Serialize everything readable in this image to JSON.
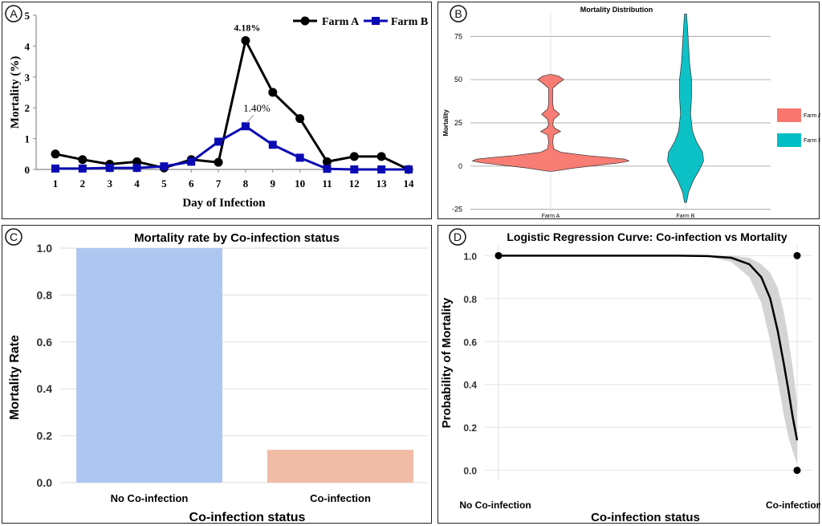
{
  "panels": {
    "A": "A",
    "B": "B",
    "C": "C",
    "D": "D"
  },
  "chart_data": [
    {
      "panel": "A",
      "type": "line",
      "title": "",
      "xlabel": "Day of Infection",
      "ylabel": "Mortality (%)",
      "x": [
        1,
        2,
        3,
        4,
        5,
        6,
        7,
        8,
        9,
        10,
        11,
        12,
        13,
        14
      ],
      "ylim": [
        0,
        5
      ],
      "yticks": [
        0,
        1,
        2,
        3,
        4,
        5
      ],
      "grid": false,
      "legend": "top-right",
      "series": [
        {
          "name": "Farm A",
          "color": "#000000",
          "marker": "circle",
          "values": [
            0.5,
            0.32,
            0.17,
            0.25,
            0.05,
            0.32,
            0.23,
            4.18,
            2.5,
            1.65,
            0.25,
            0.42,
            0.42,
            0.0
          ]
        },
        {
          "name": "Farm B",
          "color": "#0a0ab4",
          "marker": "square",
          "values": [
            0.03,
            0.03,
            0.05,
            0.05,
            0.1,
            0.25,
            0.9,
            1.4,
            0.8,
            0.38,
            0.02,
            0.0,
            0.0,
            0.0
          ]
        }
      ],
      "annotations": [
        {
          "text": "4.18%",
          "x": 8,
          "y": 4.18
        },
        {
          "text": "1.40%",
          "x": 8,
          "y": 1.4
        }
      ]
    },
    {
      "panel": "B",
      "type": "violin",
      "title": "Mortality Distribution",
      "xlabel": "",
      "ylabel": "Mortality",
      "categories": [
        "Farm A",
        "Farm B"
      ],
      "ylim": [
        -27,
        90
      ],
      "yticks": [
        -25,
        0,
        25,
        50,
        75
      ],
      "grid": true,
      "legend": "right",
      "series": [
        {
          "name": "Farm A",
          "color": "#f8766d",
          "profile": [
            [
              -3,
              2
            ],
            [
              -1,
              25
            ],
            [
              1,
              55
            ],
            [
              2,
              70
            ],
            [
              3,
              78
            ],
            [
              4,
              74
            ],
            [
              5,
              58
            ],
            [
              6,
              38
            ],
            [
              8,
              10
            ],
            [
              10,
              3
            ],
            [
              14,
              2
            ],
            [
              18,
              3
            ],
            [
              20,
              10
            ],
            [
              22,
              4
            ],
            [
              24,
              2
            ],
            [
              27,
              3
            ],
            [
              30,
              9
            ],
            [
              33,
              3
            ],
            [
              36,
              2
            ],
            [
              45,
              2
            ],
            [
              48,
              8
            ],
            [
              50,
              13
            ],
            [
              52,
              8
            ],
            [
              53,
              1
            ]
          ]
        },
        {
          "name": "Farm B",
          "color": "#00bfc4",
          "profile": [
            [
              -21,
              1
            ],
            [
              -15,
              3
            ],
            [
              -8,
              8
            ],
            [
              -2,
              14
            ],
            [
              3,
              18
            ],
            [
              8,
              17
            ],
            [
              14,
              11
            ],
            [
              20,
              7
            ],
            [
              30,
              5
            ],
            [
              40,
              6
            ],
            [
              50,
              6
            ],
            [
              60,
              4
            ],
            [
              70,
              3
            ],
            [
              80,
              2
            ],
            [
              88,
              1
            ]
          ]
        }
      ]
    },
    {
      "panel": "C",
      "type": "bar",
      "title": "Mortality rate by Co-infection status",
      "xlabel": "Co-infection status",
      "ylabel": "Mortality Rate",
      "categories": [
        "No Co-infection",
        "Co-infection"
      ],
      "values": [
        1.0,
        0.14
      ],
      "colors": [
        "#aec7f0",
        "#f0bca6"
      ],
      "ylim": [
        0,
        1.0
      ],
      "yticks": [
        "0.0",
        "0.2",
        "0.4",
        "0.6",
        "0.8",
        "1.0"
      ],
      "grid": true
    },
    {
      "panel": "D",
      "type": "line",
      "title": "Logistic Regression Curve: Co-infection vs Mortality",
      "xlabel": "Co-infection status",
      "ylabel": "Probability of Mortality",
      "categories": [
        "No Co-infection",
        "Co-infection"
      ],
      "ylim": [
        -0.05,
        1.05
      ],
      "yticks": [
        "0.0",
        "0.2",
        "0.4",
        "0.6",
        "0.8",
        "1.0"
      ],
      "grid": true,
      "curve": [
        [
          0,
          1.0
        ],
        [
          0.6,
          1.0
        ],
        [
          0.7,
          0.998
        ],
        [
          0.78,
          0.99
        ],
        [
          0.84,
          0.96
        ],
        [
          0.88,
          0.9
        ],
        [
          0.91,
          0.8
        ],
        [
          0.935,
          0.65
        ],
        [
          0.955,
          0.5
        ],
        [
          0.97,
          0.38
        ],
        [
          0.985,
          0.25
        ],
        [
          1.0,
          0.14
        ]
      ],
      "band_lower": [
        [
          0,
          1.0
        ],
        [
          0.7,
          0.997
        ],
        [
          0.78,
          0.97
        ],
        [
          0.84,
          0.9
        ],
        [
          0.88,
          0.78
        ],
        [
          0.91,
          0.6
        ],
        [
          0.935,
          0.42
        ],
        [
          0.955,
          0.26
        ],
        [
          0.97,
          0.16
        ],
        [
          0.985,
          0.09
        ],
        [
          1.0,
          0.03
        ]
      ],
      "band_upper": [
        [
          0,
          1.0
        ],
        [
          0.7,
          1.0
        ],
        [
          0.78,
          1.0
        ],
        [
          0.84,
          0.99
        ],
        [
          0.88,
          0.96
        ],
        [
          0.91,
          0.92
        ],
        [
          0.935,
          0.85
        ],
        [
          0.955,
          0.74
        ],
        [
          0.97,
          0.62
        ],
        [
          0.985,
          0.48
        ],
        [
          1.0,
          0.32
        ]
      ],
      "points": [
        [
          0,
          1
        ],
        [
          1,
          1
        ],
        [
          1,
          0
        ]
      ]
    }
  ]
}
